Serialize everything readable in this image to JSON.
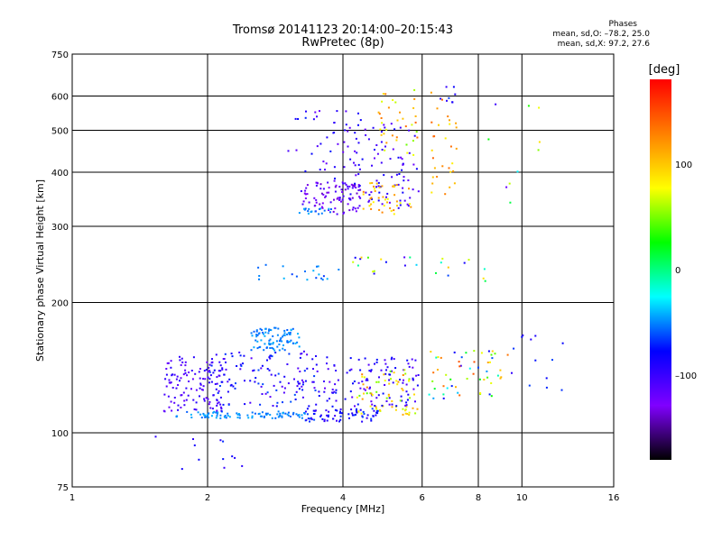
{
  "chart_data": {
    "type": "scatter",
    "title": "Tromsø 20141123 20:14:00–20:15:43",
    "subtitle": "RwPretec (8p)",
    "xlabel": "Frequency [MHz]",
    "ylabel": "Stationary phase Virtual Height [km]",
    "x_scale": "log",
    "y_scale": "log",
    "xlim": [
      1,
      16
    ],
    "ylim": [
      75,
      750
    ],
    "x_ticks": [
      1,
      2,
      4,
      6,
      8,
      10,
      16
    ],
    "y_ticks": [
      75,
      100,
      200,
      300,
      400,
      500,
      600,
      750
    ],
    "x_tick_labels": [
      "1",
      "2",
      "4",
      "6",
      "8",
      "10",
      "16"
    ],
    "y_tick_labels": [
      "75",
      "100",
      "200",
      "300",
      "400",
      "500",
      "600",
      "750"
    ],
    "grid": true,
    "colorbar": {
      "label": "[deg]",
      "range": [
        -180,
        180
      ],
      "ticks": [
        100,
        0,
        -100
      ],
      "tick_labels": [
        "100",
        "0",
        "–100"
      ],
      "colors": [
        "#000000",
        "#8000ff",
        "#0000ff",
        "#00ffff",
        "#00ff00",
        "#ffff00",
        "#ff8000",
        "#ff0000"
      ]
    },
    "stats_header": "Phases",
    "stats": [
      "mean, sd,O: –78.2, 25.0",
      "mean, sd,X:  97.2, 27.6"
    ],
    "clusters": [
      {
        "x": [
          1.7,
          3.3
        ],
        "y": [
          108,
          112
        ],
        "phase": [
          -60,
          -40
        ],
        "n": 90
      },
      {
        "x": [
          3.3,
          4.8
        ],
        "y": [
          106,
          114
        ],
        "phase": [
          -105,
          -60
        ],
        "n": 70
      },
      {
        "x": [
          4.3,
          5.9
        ],
        "y": [
          110,
          116
        ],
        "phase": [
          60,
          120
        ],
        "n": 25
      },
      {
        "x": [
          1.6,
          2.2
        ],
        "y": [
          112,
          150
        ],
        "phase": [
          -120,
          -90
        ],
        "n": 120
      },
      {
        "x": [
          2.0,
          3.6
        ],
        "y": [
          115,
          155
        ],
        "phase": [
          -115,
          -60
        ],
        "n": 130
      },
      {
        "x": [
          2.5,
          3.2
        ],
        "y": [
          155,
          175
        ],
        "phase": [
          -60,
          -40
        ],
        "n": 90
      },
      {
        "x": [
          3.6,
          5.9
        ],
        "y": [
          115,
          150
        ],
        "phase": [
          -120,
          -70
        ],
        "n": 110
      },
      {
        "x": [
          4.3,
          5.8
        ],
        "y": [
          118,
          140
        ],
        "phase": [
          40,
          130
        ],
        "n": 40
      },
      {
        "x": [
          6.2,
          9.5
        ],
        "y": [
          120,
          155
        ],
        "phase": [
          -100,
          150
        ],
        "n": 55
      },
      {
        "x": [
          9.5,
          12.5
        ],
        "y": [
          125,
          170
        ],
        "phase": [
          -100,
          -60
        ],
        "n": 12
      },
      {
        "x": [
          1.5,
          2.4
        ],
        "y": [
          82,
          100
        ],
        "phase": [
          -100,
          -60
        ],
        "n": 12
      },
      {
        "x": [
          2.5,
          4.0
        ],
        "y": [
          225,
          245
        ],
        "phase": [
          -70,
          -40
        ],
        "n": 20
      },
      {
        "x": [
          4.2,
          5.9
        ],
        "y": [
          230,
          255
        ],
        "phase": [
          -110,
          100
        ],
        "n": 15
      },
      {
        "x": [
          6.2,
          8.3
        ],
        "y": [
          220,
          260
        ],
        "phase": [
          -100,
          120
        ],
        "n": 10
      },
      {
        "x": [
          3.2,
          4.4
        ],
        "y": [
          320,
          380
        ],
        "phase": [
          -140,
          -100
        ],
        "n": 90
      },
      {
        "x": [
          3.2,
          3.8
        ],
        "y": [
          320,
          330
        ],
        "phase": [
          -60,
          -40
        ],
        "n": 18
      },
      {
        "x": [
          3.0,
          4.4
        ],
        "y": [
          380,
          560
        ],
        "phase": [
          -120,
          -70
        ],
        "n": 40
      },
      {
        "x": [
          4.0,
          5.9
        ],
        "y": [
          330,
          520
        ],
        "phase": [
          -120,
          -80
        ],
        "n": 90
      },
      {
        "x": [
          4.4,
          5.8
        ],
        "y": [
          320,
          380
        ],
        "phase": [
          70,
          130
        ],
        "n": 40
      },
      {
        "x": [
          4.8,
          5.9
        ],
        "y": [
          430,
          620
        ],
        "phase": [
          40,
          140
        ],
        "n": 35
      },
      {
        "x": [
          6.2,
          7.2
        ],
        "y": [
          350,
          620
        ],
        "phase": [
          80,
          140
        ],
        "n": 30
      },
      {
        "x": [
          6.5,
          7.2
        ],
        "y": [
          580,
          630
        ],
        "phase": [
          -100,
          -60
        ],
        "n": 8
      },
      {
        "x": [
          8.0,
          11.0
        ],
        "y": [
          300,
          650
        ],
        "phase": [
          -120,
          120
        ],
        "n": 10
      }
    ]
  }
}
